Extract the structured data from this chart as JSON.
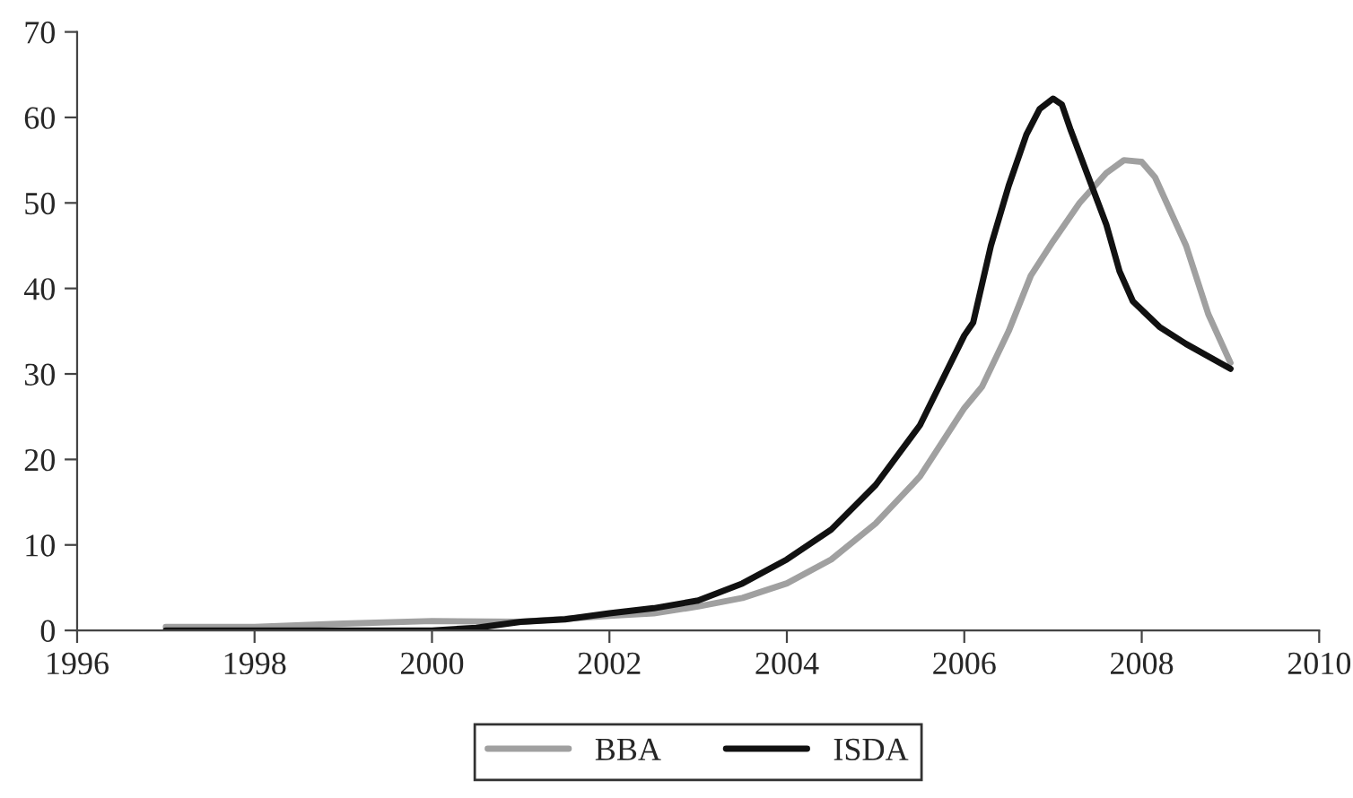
{
  "chart_data": {
    "type": "line",
    "xlim": [
      1996,
      2010
    ],
    "xticks": [
      1996,
      1998,
      2000,
      2002,
      2004,
      2006,
      2008,
      2010
    ],
    "ylim": [
      0,
      70
    ],
    "yticks": [
      0,
      10,
      20,
      30,
      40,
      50,
      60,
      70
    ],
    "grid": false,
    "legend": "bottom",
    "line_style": "solid",
    "series": [
      {
        "name": "BBA",
        "color": "#a0a0a0",
        "x": [
          1997,
          1998,
          1999,
          2000,
          2001,
          2002,
          2002.5,
          2003,
          2003.5,
          2004,
          2004.5,
          2005,
          2005.5,
          2006,
          2006.2,
          2006.5,
          2006.75,
          2007,
          2007.3,
          2007.6,
          2007.8,
          2008,
          2008.15,
          2008.5,
          2008.75,
          2009
        ],
        "values": [
          0.4,
          0.4,
          0.8,
          1.1,
          1.0,
          1.7,
          2.0,
          2.8,
          3.8,
          5.5,
          8.3,
          12.5,
          18,
          26,
          28.5,
          35,
          41.5,
          45.5,
          50,
          53.5,
          55,
          54.8,
          53,
          45,
          37,
          31.3
        ]
      },
      {
        "name": "ISDA",
        "color": "#111111",
        "x": [
          1997,
          1998,
          1999,
          2000,
          2000.5,
          2001,
          2001.5,
          2002,
          2002.5,
          2003,
          2003.5,
          2004,
          2004.5,
          2005,
          2005.5,
          2006,
          2006.1,
          2006.3,
          2006.5,
          2006.7,
          2006.85,
          2007,
          2007.1,
          2007.2,
          2007.4,
          2007.6,
          2007.75,
          2007.9,
          2008.2,
          2008.5,
          2009
        ],
        "values": [
          0,
          0,
          0,
          0,
          0.3,
          1.0,
          1.3,
          2.0,
          2.6,
          3.5,
          5.5,
          8.3,
          11.8,
          17,
          24,
          34.5,
          36,
          45,
          52,
          58,
          61,
          62.2,
          61.5,
          58.5,
          53,
          47.5,
          42,
          38.5,
          35.5,
          33.5,
          30.6
        ]
      }
    ]
  }
}
